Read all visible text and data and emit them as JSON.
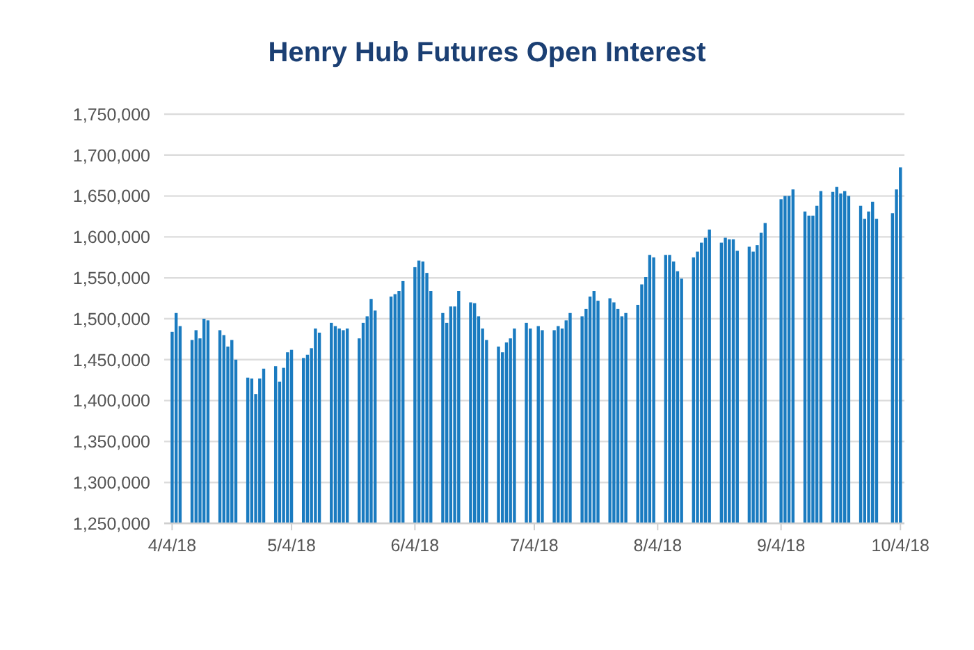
{
  "chart_data": {
    "type": "bar",
    "title": "Henry Hub Futures Open Interest",
    "x": [
      "2018-04-04",
      "2018-04-05",
      "2018-04-06",
      "2018-04-09",
      "2018-04-10",
      "2018-04-11",
      "2018-04-12",
      "2018-04-13",
      "2018-04-16",
      "2018-04-17",
      "2018-04-18",
      "2018-04-19",
      "2018-04-20",
      "2018-04-23",
      "2018-04-24",
      "2018-04-25",
      "2018-04-26",
      "2018-04-27",
      "2018-04-30",
      "2018-05-01",
      "2018-05-02",
      "2018-05-03",
      "2018-05-04",
      "2018-05-07",
      "2018-05-08",
      "2018-05-09",
      "2018-05-10",
      "2018-05-11",
      "2018-05-14",
      "2018-05-15",
      "2018-05-16",
      "2018-05-17",
      "2018-05-18",
      "2018-05-21",
      "2018-05-22",
      "2018-05-23",
      "2018-05-24",
      "2018-05-25",
      "2018-05-29",
      "2018-05-30",
      "2018-05-31",
      "2018-06-01",
      "2018-06-04",
      "2018-06-05",
      "2018-06-06",
      "2018-06-07",
      "2018-06-08",
      "2018-06-11",
      "2018-06-12",
      "2018-06-13",
      "2018-06-14",
      "2018-06-15",
      "2018-06-18",
      "2018-06-19",
      "2018-06-20",
      "2018-06-21",
      "2018-06-22",
      "2018-06-25",
      "2018-06-26",
      "2018-06-27",
      "2018-06-28",
      "2018-06-29",
      "2018-07-02",
      "2018-07-03",
      "2018-07-05",
      "2018-07-06",
      "2018-07-09",
      "2018-07-10",
      "2018-07-11",
      "2018-07-12",
      "2018-07-13",
      "2018-07-16",
      "2018-07-17",
      "2018-07-18",
      "2018-07-19",
      "2018-07-20",
      "2018-07-23",
      "2018-07-24",
      "2018-07-25",
      "2018-07-26",
      "2018-07-27",
      "2018-07-30",
      "2018-07-31",
      "2018-08-01",
      "2018-08-02",
      "2018-08-03",
      "2018-08-06",
      "2018-08-07",
      "2018-08-08",
      "2018-08-09",
      "2018-08-10",
      "2018-08-13",
      "2018-08-14",
      "2018-08-15",
      "2018-08-16",
      "2018-08-17",
      "2018-08-20",
      "2018-08-21",
      "2018-08-22",
      "2018-08-23",
      "2018-08-24",
      "2018-08-27",
      "2018-08-28",
      "2018-08-29",
      "2018-08-30",
      "2018-08-31",
      "2018-09-04",
      "2018-09-05",
      "2018-09-06",
      "2018-09-07",
      "2018-09-10",
      "2018-09-11",
      "2018-09-12",
      "2018-09-13",
      "2018-09-14",
      "2018-09-17",
      "2018-09-18",
      "2018-09-19",
      "2018-09-20",
      "2018-09-21",
      "2018-09-24",
      "2018-09-25",
      "2018-09-26",
      "2018-09-27",
      "2018-09-28",
      "2018-10-02",
      "2018-10-03",
      "2018-10-04"
    ],
    "values": [
      1484000,
      1507000,
      1491000,
      1474000,
      1486000,
      1476000,
      1500000,
      1498000,
      1486000,
      1480000,
      1466000,
      1474000,
      1450000,
      1428000,
      1427000,
      1408000,
      1427000,
      1439000,
      1442000,
      1423000,
      1440000,
      1459000,
      1462000,
      1452000,
      1456000,
      1464000,
      1488000,
      1483000,
      1495000,
      1491000,
      1488000,
      1486000,
      1488000,
      1476000,
      1495000,
      1503000,
      1524000,
      1510000,
      1527000,
      1530000,
      1534000,
      1546000,
      1563000,
      1571000,
      1570000,
      1556000,
      1534000,
      1507000,
      1495000,
      1515000,
      1515000,
      1534000,
      1520000,
      1519000,
      1503000,
      1488000,
      1474000,
      1466000,
      1459000,
      1471000,
      1476000,
      1488000,
      1495000,
      1488000,
      1491000,
      1486000,
      1486000,
      1491000,
      1488000,
      1498000,
      1507000,
      1503000,
      1512000,
      1527000,
      1534000,
      1522000,
      1525000,
      1520000,
      1512000,
      1503000,
      1507000,
      1517000,
      1542000,
      1551000,
      1578000,
      1575000,
      1578000,
      1578000,
      1570000,
      1558000,
      1549000,
      1575000,
      1582000,
      1593000,
      1599000,
      1609000,
      1593000,
      1599000,
      1597000,
      1597000,
      1583000,
      1588000,
      1582000,
      1590000,
      1605000,
      1617000,
      1646000,
      1650000,
      1650000,
      1658000,
      1631000,
      1626000,
      1626000,
      1638000,
      1656000,
      1655000,
      1661000,
      1653000,
      1656000,
      1650000,
      1638000,
      1622000,
      1631000,
      1643000,
      1622000,
      1629000,
      1658000,
      1685000
    ],
    "color": "#1a7bc0",
    "xlim": [
      "2018-04-02",
      "2018-10-05"
    ],
    "xticks": [
      {
        "value": "2018-04-04",
        "label": "4/4/18"
      },
      {
        "value": "2018-05-04",
        "label": "5/4/18"
      },
      {
        "value": "2018-06-04",
        "label": "6/4/18"
      },
      {
        "value": "2018-07-04",
        "label": "7/4/18"
      },
      {
        "value": "2018-08-04",
        "label": "8/4/18"
      },
      {
        "value": "2018-09-04",
        "label": "9/4/18"
      },
      {
        "value": "2018-10-04",
        "label": "10/4/18"
      }
    ],
    "ylim": [
      1250000,
      1750000
    ],
    "yticks": [
      {
        "value": 1250000,
        "label": "1,250,000"
      },
      {
        "value": 1300000,
        "label": "1,300,000"
      },
      {
        "value": 1350000,
        "label": "1,350,000"
      },
      {
        "value": 1400000,
        "label": "1,400,000"
      },
      {
        "value": 1450000,
        "label": "1,450,000"
      },
      {
        "value": 1500000,
        "label": "1,500,000"
      },
      {
        "value": 1550000,
        "label": "1,550,000"
      },
      {
        "value": 1600000,
        "label": "1,600,000"
      },
      {
        "value": 1650000,
        "label": "1,650,000"
      },
      {
        "value": 1700000,
        "label": "1,700,000"
      },
      {
        "value": 1750000,
        "label": "1,750,000"
      }
    ],
    "grid": "y"
  }
}
